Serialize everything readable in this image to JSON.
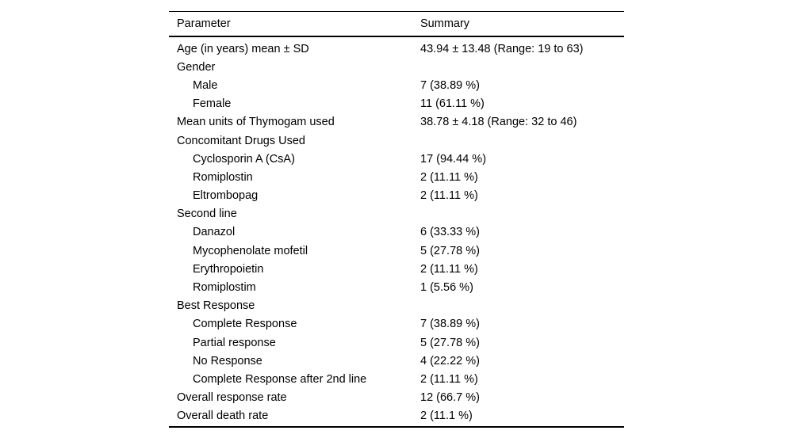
{
  "table": {
    "columns": [
      "Parameter",
      "Summary"
    ],
    "rows": [
      {
        "parameter": "Age (in years) mean ± SD",
        "summary": "43.94 ± 13.48 (Range: 19 to 63)",
        "indent": 0
      },
      {
        "parameter": "Gender",
        "summary": "",
        "indent": 0
      },
      {
        "parameter": "Male",
        "summary": "7 (38.89 %)",
        "indent": 1
      },
      {
        "parameter": "Female",
        "summary": "11 (61.11 %)",
        "indent": 1
      },
      {
        "parameter": "Mean units of Thymogam used",
        "summary": "38.78 ± 4.18 (Range: 32 to 46)",
        "indent": 0
      },
      {
        "parameter": "Concomitant Drugs Used",
        "summary": "",
        "indent": 0
      },
      {
        "parameter": "Cyclosporin A (CsA)",
        "summary": "17 (94.44 %)",
        "indent": 1
      },
      {
        "parameter": "Romiplostin",
        "summary": "2 (11.11 %)",
        "indent": 1
      },
      {
        "parameter": "Eltrombopag",
        "summary": "2 (11.11 %)",
        "indent": 1
      },
      {
        "parameter": "Second line",
        "summary": "",
        "indent": 0
      },
      {
        "parameter": "Danazol",
        "summary": "6 (33.33 %)",
        "indent": 1
      },
      {
        "parameter": "Mycophenolate mofetil",
        "summary": "5 (27.78 %)",
        "indent": 1
      },
      {
        "parameter": "Erythropoietin",
        "summary": "2 (11.11 %)",
        "indent": 1
      },
      {
        "parameter": "Romiplostim",
        "summary": "1 (5.56 %)",
        "indent": 1
      },
      {
        "parameter": "Best Response",
        "summary": "",
        "indent": 0
      },
      {
        "parameter": "Complete Response",
        "summary": "7 (38.89 %)",
        "indent": 1
      },
      {
        "parameter": "Partial response",
        "summary": "5 (27.78 %)",
        "indent": 1
      },
      {
        "parameter": "No Response",
        "summary": "4 (22.22 %)",
        "indent": 1
      },
      {
        "parameter": "Complete Response after 2nd line",
        "summary": "2 (11.11 %)",
        "indent": 1
      },
      {
        "parameter": "Overall response rate",
        "summary": "12 (66.7 %)",
        "indent": 0
      },
      {
        "parameter": "Overall death rate",
        "summary": "2 (11.1 %)",
        "indent": 0
      }
    ]
  }
}
